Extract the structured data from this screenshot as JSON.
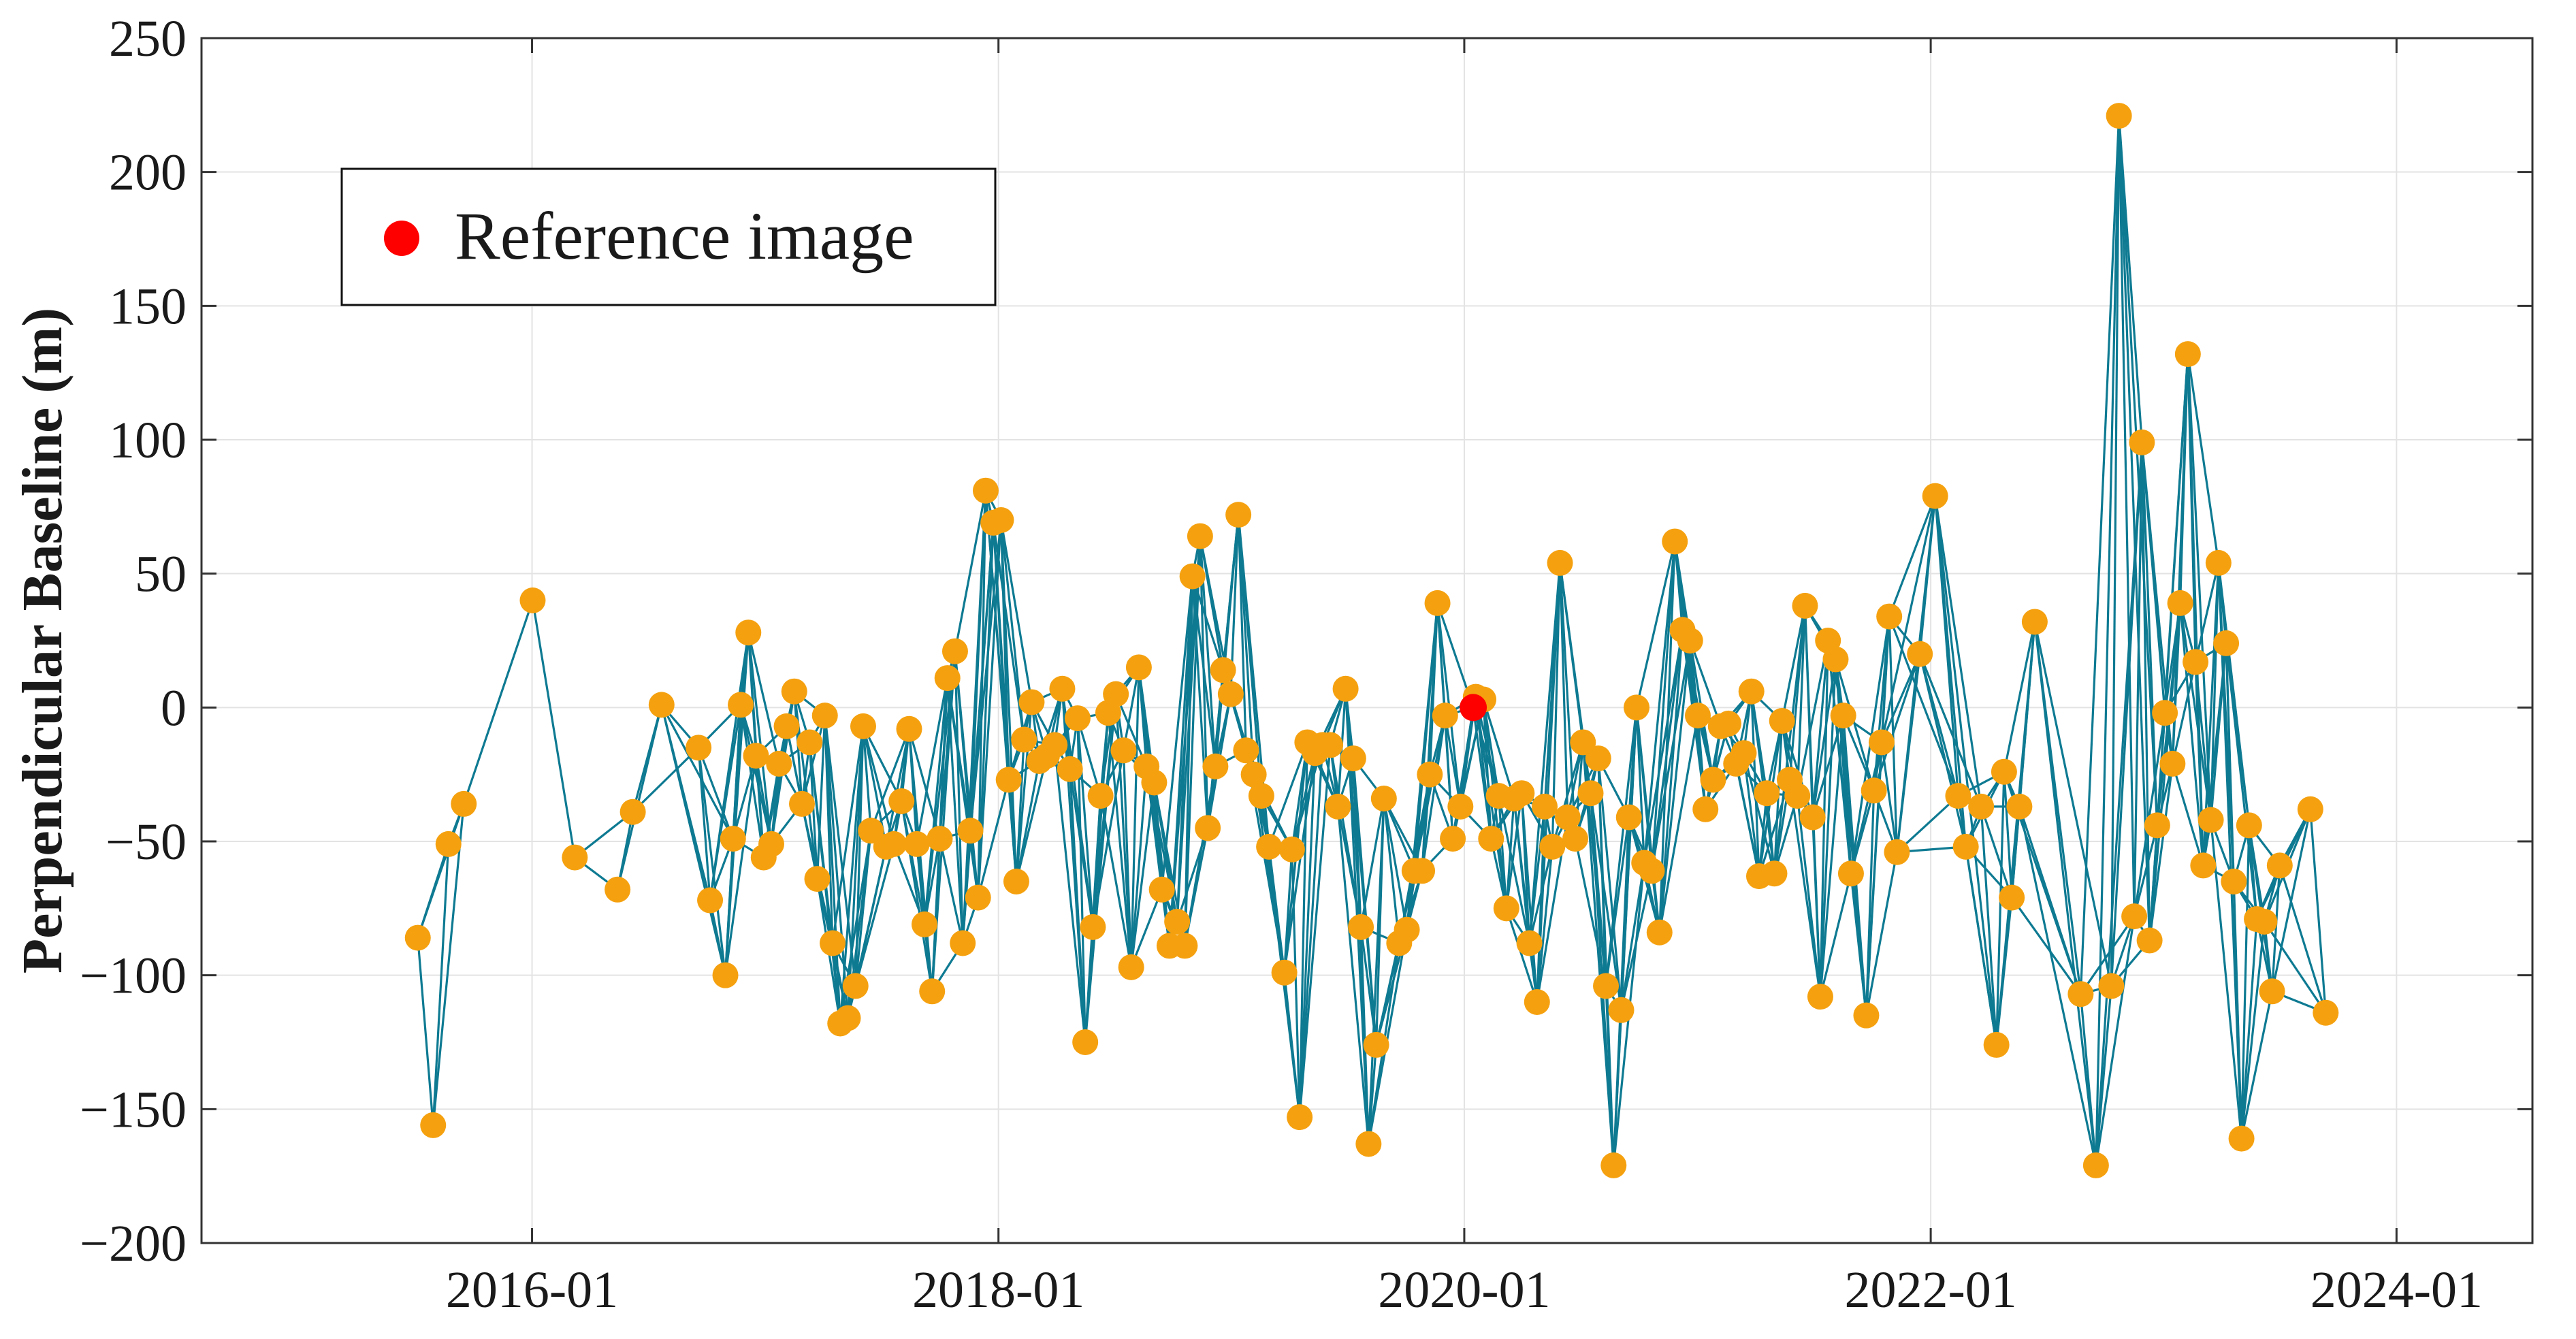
{
  "chart_data": {
    "type": "scatter",
    "title": "",
    "xlabel": "",
    "ylabel": "Perpendicular Baseline (m)",
    "xlim": [
      "2014-08-01",
      "2024-08-01"
    ],
    "ylim": [
      -200,
      250
    ],
    "x_ticks": [
      "2016-01",
      "2018-01",
      "2020-01",
      "2022-01",
      "2024-01"
    ],
    "y_ticks": [
      250,
      200,
      150,
      100,
      50,
      0,
      -50,
      -100,
      -150,
      -200
    ],
    "y_tick_labels": [
      "250",
      "200",
      "150",
      "100",
      "50",
      "0",
      "−50",
      "−100",
      "−150",
      "−200"
    ],
    "grid": true,
    "legend": {
      "position": "top-left",
      "entries": [
        "Reference image"
      ]
    },
    "colors": {
      "points": "#F5A10F",
      "edges": "#0E7A92",
      "reference": "#FF0000",
      "grid": "#E3E3E3",
      "axis": "#333333"
    },
    "reference": {
      "date": "2020-01-15",
      "baseline": 0,
      "label": "Reference image"
    },
    "points": [
      {
        "date": "2015-07-06",
        "baseline": -86
      },
      {
        "date": "2015-07-30",
        "baseline": -156
      },
      {
        "date": "2015-08-23",
        "baseline": -51
      },
      {
        "date": "2015-09-16",
        "baseline": -36
      },
      {
        "date": "2016-01-02",
        "baseline": 40
      },
      {
        "date": "2016-03-08",
        "baseline": -56
      },
      {
        "date": "2016-05-14",
        "baseline": -68
      },
      {
        "date": "2016-06-07",
        "baseline": -39
      },
      {
        "date": "2016-07-22",
        "baseline": 1
      },
      {
        "date": "2016-09-18",
        "baseline": -15
      },
      {
        "date": "2016-10-06",
        "baseline": -72
      },
      {
        "date": "2016-10-30",
        "baseline": -100
      },
      {
        "date": "2016-11-11",
        "baseline": -49
      },
      {
        "date": "2016-11-23",
        "baseline": 1
      },
      {
        "date": "2016-12-05",
        "baseline": 28
      },
      {
        "date": "2016-12-17",
        "baseline": -18
      },
      {
        "date": "2016-12-29",
        "baseline": -56
      },
      {
        "date": "2017-01-10",
        "baseline": -51
      },
      {
        "date": "2017-01-22",
        "baseline": -21
      },
      {
        "date": "2017-02-03",
        "baseline": -7
      },
      {
        "date": "2017-02-15",
        "baseline": 6
      },
      {
        "date": "2017-02-27",
        "baseline": -36
      },
      {
        "date": "2017-03-11",
        "baseline": -13
      },
      {
        "date": "2017-03-23",
        "baseline": -64
      },
      {
        "date": "2017-04-04",
        "baseline": -3
      },
      {
        "date": "2017-04-16",
        "baseline": -88
      },
      {
        "date": "2017-04-28",
        "baseline": -118
      },
      {
        "date": "2017-05-10",
        "baseline": -116
      },
      {
        "date": "2017-05-22",
        "baseline": -104
      },
      {
        "date": "2017-06-03",
        "baseline": -7
      },
      {
        "date": "2017-06-15",
        "baseline": -46
      },
      {
        "date": "2017-07-09",
        "baseline": -52
      },
      {
        "date": "2017-07-21",
        "baseline": -51
      },
      {
        "date": "2017-08-02",
        "baseline": -35
      },
      {
        "date": "2017-08-14",
        "baseline": -8
      },
      {
        "date": "2017-08-26",
        "baseline": -51
      },
      {
        "date": "2017-09-07",
        "baseline": -81
      },
      {
        "date": "2017-09-19",
        "baseline": -106
      },
      {
        "date": "2017-10-01",
        "baseline": -49
      },
      {
        "date": "2017-10-13",
        "baseline": 11
      },
      {
        "date": "2017-10-25",
        "baseline": 21
      },
      {
        "date": "2017-11-06",
        "baseline": -88
      },
      {
        "date": "2017-11-18",
        "baseline": -46
      },
      {
        "date": "2017-11-30",
        "baseline": -71
      },
      {
        "date": "2017-12-12",
        "baseline": 81
      },
      {
        "date": "2017-12-24",
        "baseline": 69
      },
      {
        "date": "2018-01-05",
        "baseline": 70
      },
      {
        "date": "2018-01-17",
        "baseline": -27
      },
      {
        "date": "2018-01-29",
        "baseline": -65
      },
      {
        "date": "2018-02-10",
        "baseline": -12
      },
      {
        "date": "2018-02-22",
        "baseline": 2
      },
      {
        "date": "2018-03-06",
        "baseline": -20
      },
      {
        "date": "2018-03-18",
        "baseline": -18
      },
      {
        "date": "2018-03-30",
        "baseline": -14
      },
      {
        "date": "2018-04-11",
        "baseline": 7
      },
      {
        "date": "2018-04-23",
        "baseline": -23
      },
      {
        "date": "2018-05-05",
        "baseline": -4
      },
      {
        "date": "2018-05-17",
        "baseline": -125
      },
      {
        "date": "2018-05-29",
        "baseline": -82
      },
      {
        "date": "2018-06-10",
        "baseline": -33
      },
      {
        "date": "2018-06-22",
        "baseline": -2
      },
      {
        "date": "2018-07-04",
        "baseline": 5
      },
      {
        "date": "2018-07-16",
        "baseline": -16
      },
      {
        "date": "2018-07-28",
        "baseline": -97
      },
      {
        "date": "2018-08-09",
        "baseline": 15
      },
      {
        "date": "2018-08-21",
        "baseline": -22
      },
      {
        "date": "2018-09-02",
        "baseline": -28
      },
      {
        "date": "2018-09-14",
        "baseline": -68
      },
      {
        "date": "2018-09-26",
        "baseline": -89
      },
      {
        "date": "2018-10-08",
        "baseline": -80
      },
      {
        "date": "2018-10-20",
        "baseline": -89
      },
      {
        "date": "2018-11-01",
        "baseline": 49
      },
      {
        "date": "2018-11-13",
        "baseline": 64
      },
      {
        "date": "2018-11-25",
        "baseline": -45
      },
      {
        "date": "2018-12-07",
        "baseline": -22
      },
      {
        "date": "2018-12-19",
        "baseline": 14
      },
      {
        "date": "2018-12-31",
        "baseline": 5
      },
      {
        "date": "2019-01-12",
        "baseline": 72
      },
      {
        "date": "2019-01-24",
        "baseline": -16
      },
      {
        "date": "2019-02-05",
        "baseline": -25
      },
      {
        "date": "2019-02-17",
        "baseline": -33
      },
      {
        "date": "2019-03-01",
        "baseline": -52
      },
      {
        "date": "2019-03-25",
        "baseline": -99
      },
      {
        "date": "2019-04-06",
        "baseline": -53
      },
      {
        "date": "2019-04-18",
        "baseline": -153
      },
      {
        "date": "2019-04-30",
        "baseline": -13
      },
      {
        "date": "2019-05-12",
        "baseline": -17
      },
      {
        "date": "2019-05-24",
        "baseline": -14
      },
      {
        "date": "2019-06-05",
        "baseline": -14
      },
      {
        "date": "2019-06-17",
        "baseline": -37
      },
      {
        "date": "2019-06-29",
        "baseline": 7
      },
      {
        "date": "2019-07-11",
        "baseline": -19
      },
      {
        "date": "2019-07-23",
        "baseline": -82
      },
      {
        "date": "2019-08-04",
        "baseline": -163
      },
      {
        "date": "2019-08-16",
        "baseline": -126
      },
      {
        "date": "2019-08-28",
        "baseline": -34
      },
      {
        "date": "2019-09-21",
        "baseline": -88
      },
      {
        "date": "2019-10-03",
        "baseline": -83
      },
      {
        "date": "2019-10-15",
        "baseline": -61
      },
      {
        "date": "2019-10-27",
        "baseline": -61
      },
      {
        "date": "2019-11-08",
        "baseline": -25
      },
      {
        "date": "2019-11-20",
        "baseline": 39
      },
      {
        "date": "2019-12-02",
        "baseline": -3
      },
      {
        "date": "2019-12-14",
        "baseline": -49
      },
      {
        "date": "2019-12-26",
        "baseline": -37
      },
      {
        "date": "2020-01-19",
        "baseline": 4
      },
      {
        "date": "2020-01-31",
        "baseline": 3
      },
      {
        "date": "2020-02-12",
        "baseline": -49
      },
      {
        "date": "2020-02-24",
        "baseline": -33
      },
      {
        "date": "2020-03-07",
        "baseline": -75
      },
      {
        "date": "2020-03-19",
        "baseline": -34
      },
      {
        "date": "2020-03-31",
        "baseline": -32
      },
      {
        "date": "2020-04-12",
        "baseline": -88
      },
      {
        "date": "2020-04-24",
        "baseline": -110
      },
      {
        "date": "2020-05-06",
        "baseline": -37
      },
      {
        "date": "2020-05-18",
        "baseline": -52
      },
      {
        "date": "2020-05-30",
        "baseline": 54
      },
      {
        "date": "2020-06-11",
        "baseline": -41
      },
      {
        "date": "2020-06-23",
        "baseline": -49
      },
      {
        "date": "2020-07-05",
        "baseline": -13
      },
      {
        "date": "2020-07-17",
        "baseline": -32
      },
      {
        "date": "2020-07-29",
        "baseline": -19
      },
      {
        "date": "2020-08-10",
        "baseline": -104
      },
      {
        "date": "2020-08-22",
        "baseline": -171
      },
      {
        "date": "2020-09-03",
        "baseline": -113
      },
      {
        "date": "2020-09-15",
        "baseline": -41
      },
      {
        "date": "2020-09-27",
        "baseline": 0
      },
      {
        "date": "2020-10-09",
        "baseline": -58
      },
      {
        "date": "2020-10-21",
        "baseline": -61
      },
      {
        "date": "2020-11-02",
        "baseline": -84
      },
      {
        "date": "2020-11-26",
        "baseline": 62
      },
      {
        "date": "2020-12-08",
        "baseline": 29
      },
      {
        "date": "2020-12-20",
        "baseline": 25
      },
      {
        "date": "2021-01-01",
        "baseline": -3
      },
      {
        "date": "2021-01-13",
        "baseline": -38
      },
      {
        "date": "2021-01-25",
        "baseline": -27
      },
      {
        "date": "2021-02-06",
        "baseline": -7
      },
      {
        "date": "2021-02-18",
        "baseline": -6
      },
      {
        "date": "2021-03-02",
        "baseline": -21
      },
      {
        "date": "2021-03-14",
        "baseline": -17
      },
      {
        "date": "2021-03-26",
        "baseline": 6
      },
      {
        "date": "2021-04-07",
        "baseline": -63
      },
      {
        "date": "2021-04-19",
        "baseline": -32
      },
      {
        "date": "2021-05-01",
        "baseline": -62
      },
      {
        "date": "2021-05-13",
        "baseline": -5
      },
      {
        "date": "2021-05-25",
        "baseline": -27
      },
      {
        "date": "2021-06-06",
        "baseline": -33
      },
      {
        "date": "2021-06-18",
        "baseline": 38
      },
      {
        "date": "2021-06-30",
        "baseline": -41
      },
      {
        "date": "2021-07-12",
        "baseline": -108
      },
      {
        "date": "2021-07-24",
        "baseline": 25
      },
      {
        "date": "2021-08-05",
        "baseline": 18
      },
      {
        "date": "2021-08-17",
        "baseline": -3
      },
      {
        "date": "2021-08-29",
        "baseline": -62
      },
      {
        "date": "2021-09-22",
        "baseline": -115
      },
      {
        "date": "2021-10-04",
        "baseline": -31
      },
      {
        "date": "2021-10-16",
        "baseline": -13
      },
      {
        "date": "2021-10-28",
        "baseline": 34
      },
      {
        "date": "2021-11-09",
        "baseline": -54
      },
      {
        "date": "2021-12-15",
        "baseline": 20
      },
      {
        "date": "2022-01-08",
        "baseline": 79
      },
      {
        "date": "2022-02-13",
        "baseline": -33
      },
      {
        "date": "2022-02-25",
        "baseline": -52
      },
      {
        "date": "2022-03-21",
        "baseline": -37
      },
      {
        "date": "2022-04-14",
        "baseline": -126
      },
      {
        "date": "2022-04-26",
        "baseline": -24
      },
      {
        "date": "2022-05-08",
        "baseline": -71
      },
      {
        "date": "2022-05-20",
        "baseline": -37
      },
      {
        "date": "2022-06-13",
        "baseline": 32
      },
      {
        "date": "2022-08-24",
        "baseline": -107
      },
      {
        "date": "2022-09-17",
        "baseline": -171
      },
      {
        "date": "2022-10-11",
        "baseline": -104
      },
      {
        "date": "2022-10-23",
        "baseline": 221
      },
      {
        "date": "2022-11-16",
        "baseline": -78
      },
      {
        "date": "2022-11-28",
        "baseline": 99
      },
      {
        "date": "2022-12-10",
        "baseline": -87
      },
      {
        "date": "2022-12-22",
        "baseline": -44
      },
      {
        "date": "2023-01-03",
        "baseline": -2
      },
      {
        "date": "2023-01-15",
        "baseline": -21
      },
      {
        "date": "2023-01-27",
        "baseline": 39
      },
      {
        "date": "2023-02-08",
        "baseline": 132
      },
      {
        "date": "2023-02-20",
        "baseline": 17
      },
      {
        "date": "2023-03-04",
        "baseline": -59
      },
      {
        "date": "2023-03-16",
        "baseline": -42
      },
      {
        "date": "2023-03-28",
        "baseline": 54
      },
      {
        "date": "2023-04-09",
        "baseline": 24
      },
      {
        "date": "2023-04-21",
        "baseline": -65
      },
      {
        "date": "2023-05-03",
        "baseline": -161
      },
      {
        "date": "2023-05-15",
        "baseline": -44
      },
      {
        "date": "2023-05-27",
        "baseline": -79
      },
      {
        "date": "2023-06-08",
        "baseline": -80
      },
      {
        "date": "2023-06-20",
        "baseline": -106
      },
      {
        "date": "2023-07-02",
        "baseline": -59
      },
      {
        "date": "2023-08-19",
        "baseline": -38
      },
      {
        "date": "2023-09-12",
        "baseline": -114
      }
    ]
  }
}
